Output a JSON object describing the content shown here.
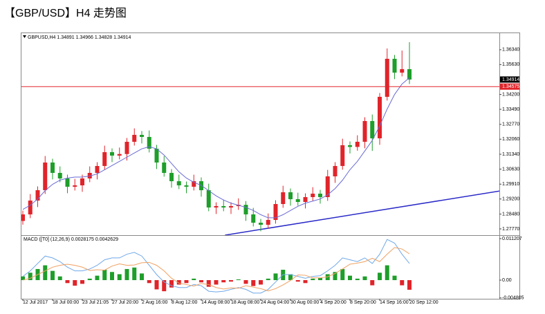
{
  "heading": "【GBP/USD】H4 走势图",
  "chart_data": [
    {
      "type": "candlestick",
      "title": "GBPUSD,H4 1.34891 1.34966 1.34828 1.34914",
      "categories": [
        "12 Jul 2017",
        null,
        null,
        null,
        "18 Jul 00:00",
        null,
        null,
        null,
        "23 Jul 21:05",
        null,
        null,
        null,
        "27 Jul 20:00",
        null,
        null,
        null,
        "2 Aug 16:00",
        null,
        null,
        null,
        "8 Aug 12:00",
        null,
        null,
        null,
        "14 Aug 08:00",
        null,
        null,
        null,
        "18 Aug 08:00",
        null,
        null,
        null,
        "24 Aug 04:00",
        null,
        null,
        null,
        "30 Aug 00:00",
        null,
        null,
        null,
        "4 Sep 20:00",
        null,
        null,
        null,
        "8 Sep 20:00",
        null,
        null,
        null,
        "14 Sep 16:00",
        null,
        null,
        null,
        "20 Sep 12:00"
      ],
      "open": [
        1.2815,
        1.28463,
        1.29125,
        1.29621,
        1.30944,
        1.30448,
        1.30183,
        1.29786,
        1.29852,
        1.30183,
        1.30448,
        1.30779,
        1.3144,
        1.31275,
        1.3135,
        1.31936,
        1.32267,
        1.32168,
        1.31606,
        1.30944,
        1.30448,
        1.30051,
        1.29852,
        1.29786,
        1.30051,
        1.29621,
        1.28794,
        1.2886,
        1.28794,
        1.2886,
        1.2892,
        1.28463,
        1.28066,
        1.27967,
        1.28198,
        1.28959,
        1.29522,
        1.29191,
        1.29058,
        1.2929,
        1.29455,
        1.2929,
        1.30282,
        1.30779,
        1.31771,
        1.3169,
        1.31936,
        1.32929,
        1.32102,
        1.34087,
        1.35906,
        1.35244,
        1.3541
      ],
      "high": [
        1.28643,
        1.29436,
        1.29801,
        1.31255,
        1.31124,
        1.30759,
        1.30363,
        1.30163,
        1.30363,
        1.30759,
        1.30959,
        1.31751,
        1.3162,
        1.31661,
        1.32116,
        1.32578,
        1.32447,
        1.32479,
        1.31786,
        1.31255,
        1.30628,
        1.30362,
        1.30032,
        1.30362,
        1.30231,
        1.29932,
        1.2904,
        1.29171,
        1.2904,
        1.29231,
        1.291,
        1.28774,
        1.28246,
        1.28509,
        1.29139,
        1.29833,
        1.29702,
        1.29502,
        1.2947,
        1.29766,
        1.29635,
        1.30593,
        1.30959,
        1.32082,
        1.31951,
        1.32247,
        1.33109,
        1.3324,
        1.34267,
        1.364,
        1.36086,
        1.363,
        1.367
      ],
      "low": [
        1.2797,
        1.28283,
        1.28814,
        1.29441,
        1.30137,
        1.30003,
        1.29475,
        1.29606,
        1.29541,
        1.30003,
        1.30137,
        1.30599,
        1.30964,
        1.31095,
        1.31039,
        1.31756,
        1.31857,
        1.31426,
        1.30633,
        1.30268,
        1.2974,
        1.29672,
        1.29475,
        1.29606,
        1.2931,
        1.28614,
        1.28483,
        1.28614,
        1.28483,
        1.2868,
        1.28152,
        1.27886,
        1.27656,
        1.27787,
        1.28018,
        1.28779,
        1.2888,
        1.28878,
        1.28747,
        1.2911,
        1.28979,
        1.2911,
        1.29971,
        1.30599,
        1.31379,
        1.3151,
        1.31625,
        1.315,
        1.31791,
        1.33907,
        1.34933,
        1.35064,
        1.347
      ],
      "close": [
        1.28463,
        1.29125,
        1.29621,
        1.30944,
        1.30448,
        1.30183,
        1.29786,
        1.29852,
        1.30183,
        1.30448,
        1.30779,
        1.3144,
        1.31275,
        1.3135,
        1.31936,
        1.32267,
        1.32168,
        1.31606,
        1.30944,
        1.30448,
        1.30051,
        1.29852,
        1.29786,
        1.30051,
        1.29621,
        1.28794,
        1.2886,
        1.28794,
        1.2886,
        1.2892,
        1.28463,
        1.28066,
        1.27967,
        1.28198,
        1.28959,
        1.29522,
        1.29191,
        1.29058,
        1.2929,
        1.29455,
        1.2929,
        1.30282,
        1.30779,
        1.31771,
        1.3169,
        1.31936,
        1.32929,
        1.32102,
        1.34087,
        1.35906,
        1.35244,
        1.3541,
        1.34914
      ],
      "up_color": "#e0242a",
      "down_color": "#1e9e2a",
      "ma_color": "#6a6ad6",
      "ma_values": [
        1.287,
        1.289,
        1.292,
        1.296,
        1.299,
        1.301,
        1.302,
        1.3025,
        1.3025,
        1.303,
        1.304,
        1.306,
        1.308,
        1.31,
        1.312,
        1.314,
        1.316,
        1.317,
        1.316,
        1.313,
        1.309,
        1.305,
        1.302,
        1.3,
        1.2985,
        1.296,
        1.2935,
        1.2915,
        1.29,
        1.289,
        1.288,
        1.2865,
        1.2845,
        1.283,
        1.283,
        1.2845,
        1.2865,
        1.2885,
        1.29,
        1.291,
        1.292,
        1.294,
        1.297,
        1.301,
        1.306,
        1.31,
        1.315,
        1.32,
        1.327,
        1.335,
        1.342,
        1.347,
        1.35
      ],
      "ylim": [
        1.2747,
        1.3713
      ],
      "yticks": [
        {
          "value": 1.3634,
          "label": "1.36340"
        },
        {
          "value": 1.3563,
          "label": "1.35630"
        },
        {
          "value": 1.342,
          "label": "1.34200"
        },
        {
          "value": 1.3349,
          "label": "1.33490"
        },
        {
          "value": 1.3277,
          "label": "1.32770"
        },
        {
          "value": 1.3206,
          "label": "1.32060"
        },
        {
          "value": 1.3134,
          "label": "1.31340"
        },
        {
          "value": 1.3063,
          "label": "1.30630"
        },
        {
          "value": 1.2991,
          "label": "1.29910"
        },
        {
          "value": 1.292,
          "label": "1.29200"
        },
        {
          "value": 1.2848,
          "label": "1.28480"
        },
        {
          "value": 1.2777,
          "label": "1.27770"
        }
      ],
      "current_price": 1.34914,
      "level_line": {
        "value": 1.34575,
        "color": "#e0242a"
      },
      "trend_line": {
        "x": [
          27.2,
          64.1
        ],
        "y": [
          1.2747,
          1.2958
        ],
        "color": "#2a2ac8"
      }
    },
    {
      "type": "macd",
      "title": "MACD ([T0] (12,26,9) 0.0028175 0.0042629",
      "histogram": [
        0.001,
        0.002,
        0.003,
        0.004,
        0.0025,
        0.001,
        -0.0008,
        -0.0015,
        -0.001,
        0.0004,
        0.0012,
        0.0028,
        0.0022,
        0.0016,
        0.003,
        0.0034,
        0.0018,
        -0.0008,
        -0.0025,
        -0.003,
        -0.002,
        -0.0012,
        -0.0008,
        0.0004,
        -0.0006,
        -0.0018,
        -0.0012,
        -0.0006,
        -0.0004,
        0.0002,
        -0.001,
        -0.0016,
        -0.0012,
        0.0004,
        0.0018,
        0.0028,
        0.0016,
        -0.0004,
        -0.0008,
        0.0004,
        0.0006,
        0.0016,
        0.0022,
        0.003,
        0.0012,
        0.0004,
        0.001,
        -0.0014,
        0.002,
        0.004,
        0.0012,
        -0.0014,
        -0.0026
      ],
      "pos_color": "#1e9e2a",
      "neg_color": "#e0242a",
      "series": [
        {
          "color": "#6fa8e8",
          "values": [
            0.001,
            0.0025,
            0.0045,
            0.0065,
            0.006,
            0.005,
            0.0035,
            0.0025,
            0.0025,
            0.003,
            0.004,
            0.0055,
            0.006,
            0.006,
            0.007,
            0.0075,
            0.0065,
            0.004,
            0.0015,
            -0.0005,
            -0.0015,
            -0.002,
            -0.002,
            -0.0012,
            -0.0015,
            -0.003,
            -0.0032,
            -0.003,
            -0.0025,
            -0.002,
            -0.0025,
            -0.0035,
            -0.0035,
            -0.0025,
            -0.0005,
            0.0015,
            0.0015,
            0.001,
            0.0005,
            0.001,
            0.0012,
            0.0025,
            0.004,
            0.006,
            0.0055,
            0.005,
            0.006,
            0.0045,
            0.007,
            0.011,
            0.01,
            0.007,
            0.0045
          ]
        },
        {
          "color": "#f0a060",
          "values": [
            0.0,
            0.0005,
            0.0015,
            0.0025,
            0.0035,
            0.004,
            0.0043,
            0.004,
            0.0035,
            0.0026,
            0.0028,
            0.0027,
            0.0038,
            0.0044,
            0.004,
            0.0041,
            0.0047,
            0.0048,
            0.004,
            0.0025,
            0.0005,
            -0.0008,
            -0.0012,
            -0.0016,
            -0.0009,
            -0.0012,
            -0.002,
            -0.0024,
            -0.0021,
            -0.0022,
            -0.0015,
            -0.0019,
            -0.0023,
            -0.0029,
            -0.0023,
            -0.0013,
            -0.0001,
            0.0014,
            0.0013,
            0.0006,
            0.0006,
            0.0009,
            0.0018,
            0.003,
            0.0043,
            0.0046,
            0.005,
            0.0059,
            0.005,
            0.007,
            0.0088,
            0.0084,
            0.0071
          ]
        }
      ],
      "ylim": [
        -0.00504,
        0.01196
      ],
      "yticks": [
        0.011207,
        {
          "value": 0,
          "label": "0.00"
        },
        -0.004805
      ]
    }
  ]
}
